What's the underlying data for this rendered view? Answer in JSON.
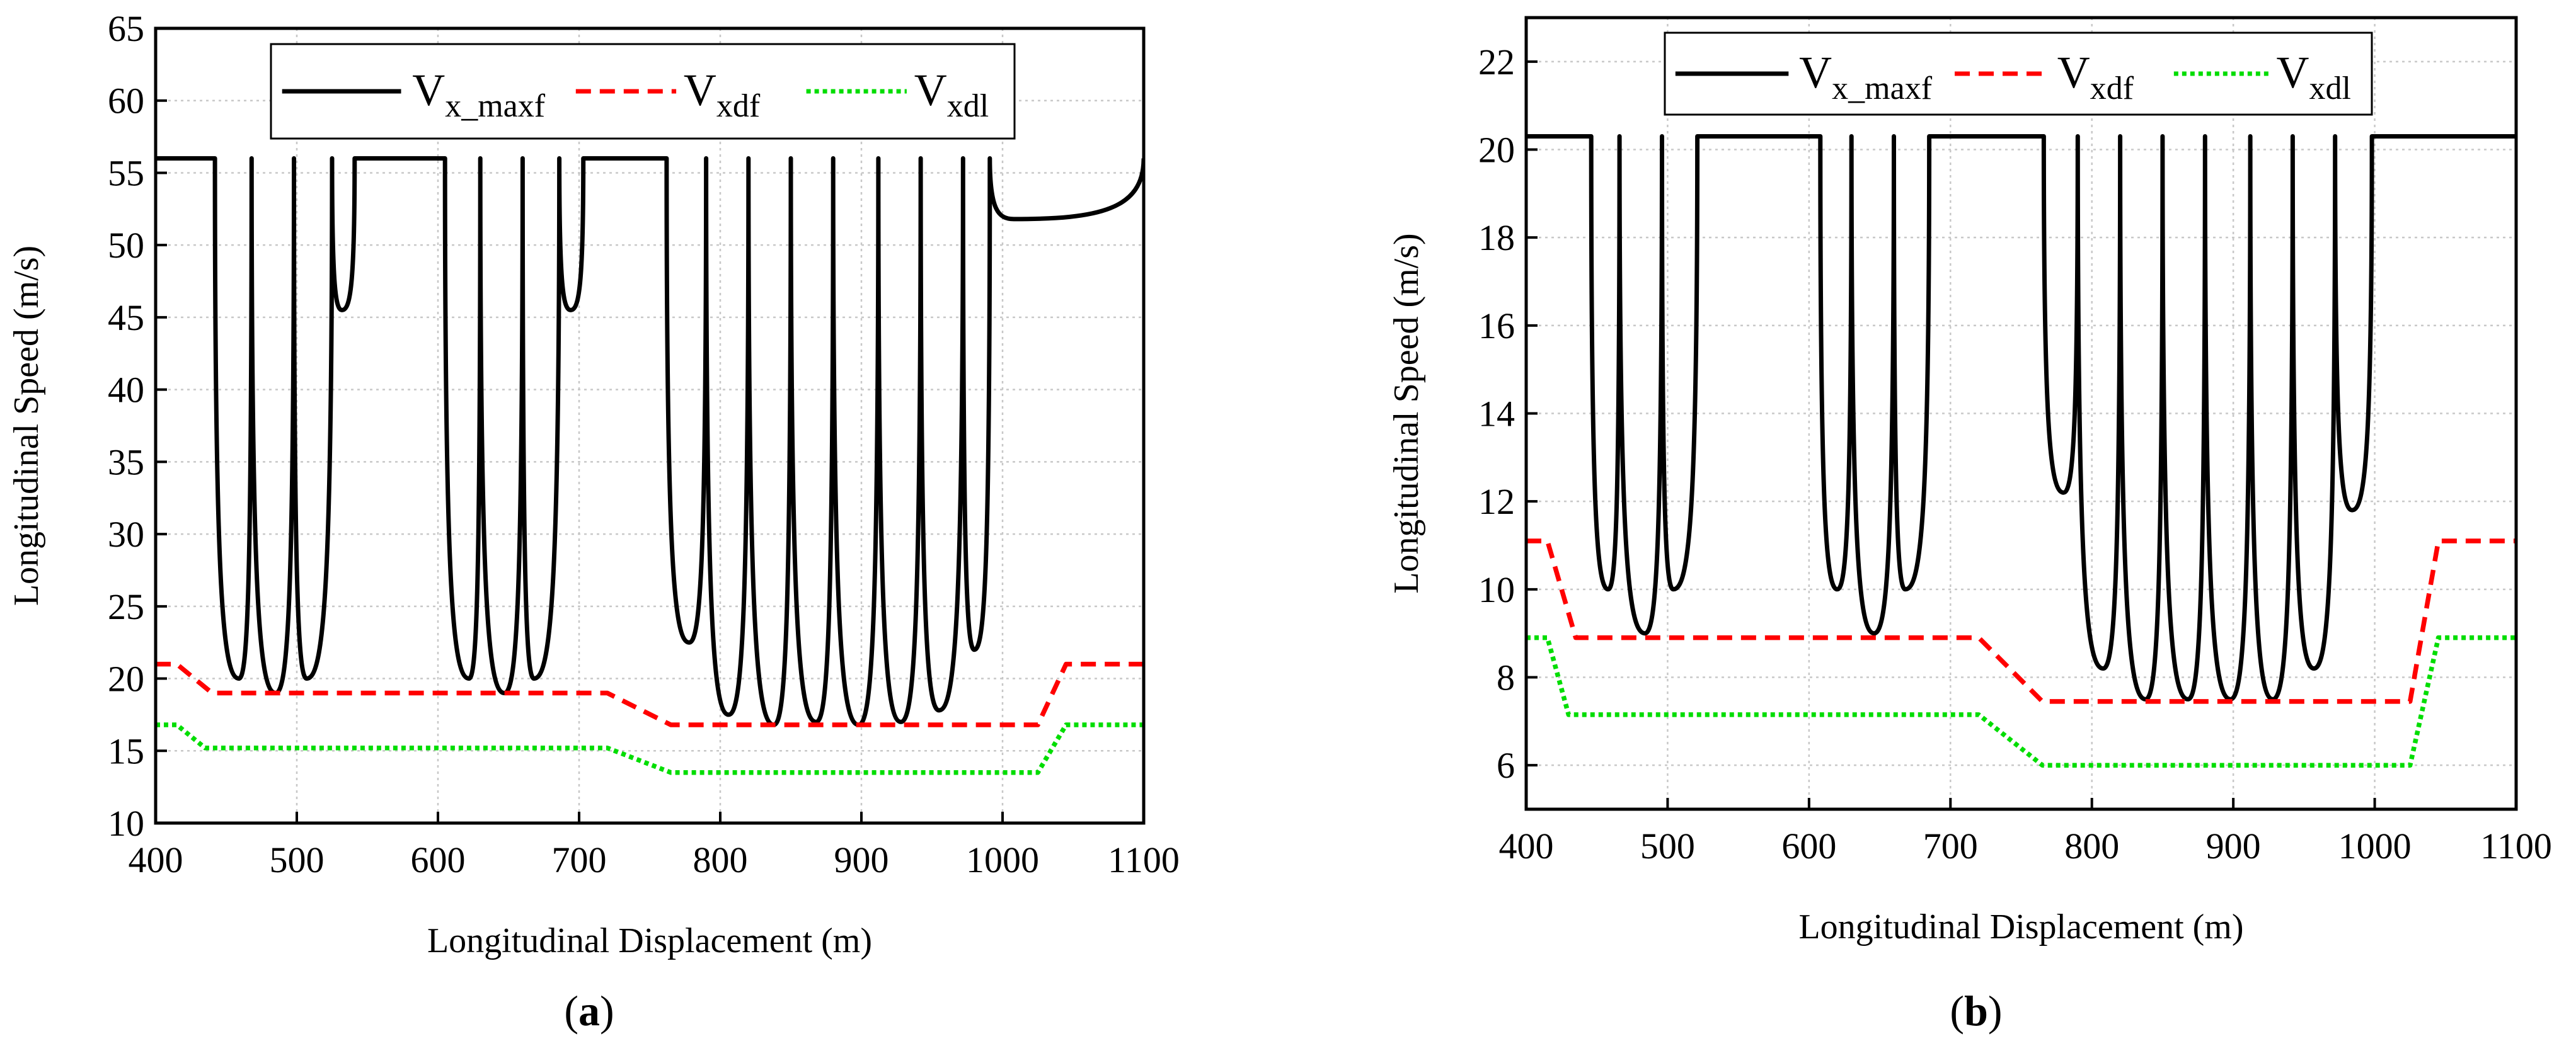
{
  "figure": {
    "panel_labels": [
      "a",
      "b"
    ]
  },
  "chart_data": [
    {
      "type": "line",
      "panel": "a",
      "xlabel": "Longitudinal Displacement (m)",
      "ylabel": "Longitudinal Speed (m/s)",
      "xlim": [
        400,
        1100
      ],
      "ylim": [
        10,
        65
      ],
      "xticks": [
        400,
        500,
        600,
        700,
        800,
        900,
        1000,
        1100
      ],
      "yticks": [
        10,
        15,
        20,
        25,
        30,
        35,
        40,
        45,
        50,
        55,
        60,
        65
      ],
      "grid": true,
      "legend": {
        "placement": "top-center",
        "entries": [
          {
            "main": "V",
            "sub": "x_maxf"
          },
          {
            "main": "V",
            "sub": "xdf"
          },
          {
            "main": "V",
            "sub": "xdl"
          }
        ]
      },
      "series": [
        {
          "name": "V_x_maxf",
          "color": "#000000",
          "dash": "solid",
          "cruise": 56,
          "spikes": [
            468,
            498,
            525,
            630,
            660,
            686,
            790,
            820,
            850,
            880,
            912,
            942,
            972
          ],
          "minima": [
            {
              "x": 459,
              "y": 20
            },
            {
              "x": 485,
              "y": 19
            },
            {
              "x": 507,
              "y": 20
            },
            {
              "x": 532,
              "y": 45.5
            },
            {
              "x": 622,
              "y": 20
            },
            {
              "x": 647,
              "y": 19
            },
            {
              "x": 668,
              "y": 20
            },
            {
              "x": 694,
              "y": 45.5
            },
            {
              "x": 778,
              "y": 22.5
            },
            {
              "x": 806,
              "y": 17.5
            },
            {
              "x": 838,
              "y": 16.8
            },
            {
              "x": 868,
              "y": 17
            },
            {
              "x": 898,
              "y": 16.8
            },
            {
              "x": 928,
              "y": 17
            },
            {
              "x": 955,
              "y": 17.8
            },
            {
              "x": 980,
              "y": 22
            },
            {
              "x": 1008,
              "y": 51.8
            }
          ],
          "plateaus": [
            [
              400,
              442
            ],
            [
              541,
              605
            ],
            [
              703,
              762
            ],
            [
              991,
              1100
            ]
          ]
        },
        {
          "name": "V_xdf",
          "color": "#ff0000",
          "dash": "dashed",
          "points": [
            [
              400,
              21
            ],
            [
              415,
              21
            ],
            [
              440,
              19
            ],
            [
              720,
              19
            ],
            [
              765,
              16.8
            ],
            [
              1025,
              16.8
            ],
            [
              1045,
              21
            ],
            [
              1100,
              21
            ]
          ]
        },
        {
          "name": "V_xdl",
          "color": "#00dd00",
          "dash": "dotted",
          "points": [
            [
              400,
              16.8
            ],
            [
              415,
              16.8
            ],
            [
              435,
              15.2
            ],
            [
              720,
              15.2
            ],
            [
              765,
              13.5
            ],
            [
              1025,
              13.5
            ],
            [
              1045,
              16.8
            ],
            [
              1100,
              16.8
            ]
          ]
        }
      ]
    },
    {
      "type": "line",
      "panel": "b",
      "xlabel": "Longitudinal Displacement (m)",
      "ylabel": "Longitudinal Speed (m/s)",
      "xlim": [
        400,
        1100
      ],
      "ylim": [
        5,
        23
      ],
      "xticks": [
        400,
        500,
        600,
        700,
        800,
        900,
        1000,
        1100
      ],
      "yticks": [
        6,
        8,
        10,
        12,
        14,
        16,
        18,
        20,
        22
      ],
      "grid": true,
      "legend": {
        "placement": "top-center",
        "entries": [
          {
            "main": "V",
            "sub": "x_maxf"
          },
          {
            "main": "V",
            "sub": "xdf"
          },
          {
            "main": "V",
            "sub": "xdl"
          }
        ]
      },
      "series": [
        {
          "name": "V_x_maxf",
          "color": "#000000",
          "dash": "solid",
          "cruise": 20.3,
          "spikes": [
            466,
            496,
            630,
            660,
            790,
            820,
            850,
            880,
            912,
            942,
            972
          ],
          "minima": [
            {
              "x": 458,
              "y": 10
            },
            {
              "x": 484,
              "y": 9
            },
            {
              "x": 504,
              "y": 10
            },
            {
              "x": 620,
              "y": 10
            },
            {
              "x": 646,
              "y": 9
            },
            {
              "x": 668,
              "y": 10
            },
            {
              "x": 780,
              "y": 12.2
            },
            {
              "x": 808,
              "y": 8.2
            },
            {
              "x": 838,
              "y": 7.5
            },
            {
              "x": 868,
              "y": 7.5
            },
            {
              "x": 898,
              "y": 7.5
            },
            {
              "x": 928,
              "y": 7.5
            },
            {
              "x": 957,
              "y": 8.2
            },
            {
              "x": 984,
              "y": 11.8
            }
          ],
          "plateaus": [
            [
              400,
              446
            ],
            [
              521,
              608
            ],
            [
              685,
              766
            ],
            [
              998,
              1100
            ]
          ]
        },
        {
          "name": "V_xdf",
          "color": "#ff0000",
          "dash": "dashed",
          "points": [
            [
              400,
              11.1
            ],
            [
              415,
              11.1
            ],
            [
              435,
              8.9
            ],
            [
              720,
              8.9
            ],
            [
              765,
              7.45
            ],
            [
              1025,
              7.45
            ],
            [
              1045,
              11.1
            ],
            [
              1100,
              11.1
            ]
          ]
        },
        {
          "name": "V_xdl",
          "color": "#00dd00",
          "dash": "dotted",
          "points": [
            [
              400,
              8.9
            ],
            [
              415,
              8.9
            ],
            [
              430,
              7.15
            ],
            [
              720,
              7.15
            ],
            [
              765,
              6
            ],
            [
              1025,
              6
            ],
            [
              1045,
              8.9
            ],
            [
              1100,
              8.9
            ]
          ]
        }
      ]
    }
  ]
}
